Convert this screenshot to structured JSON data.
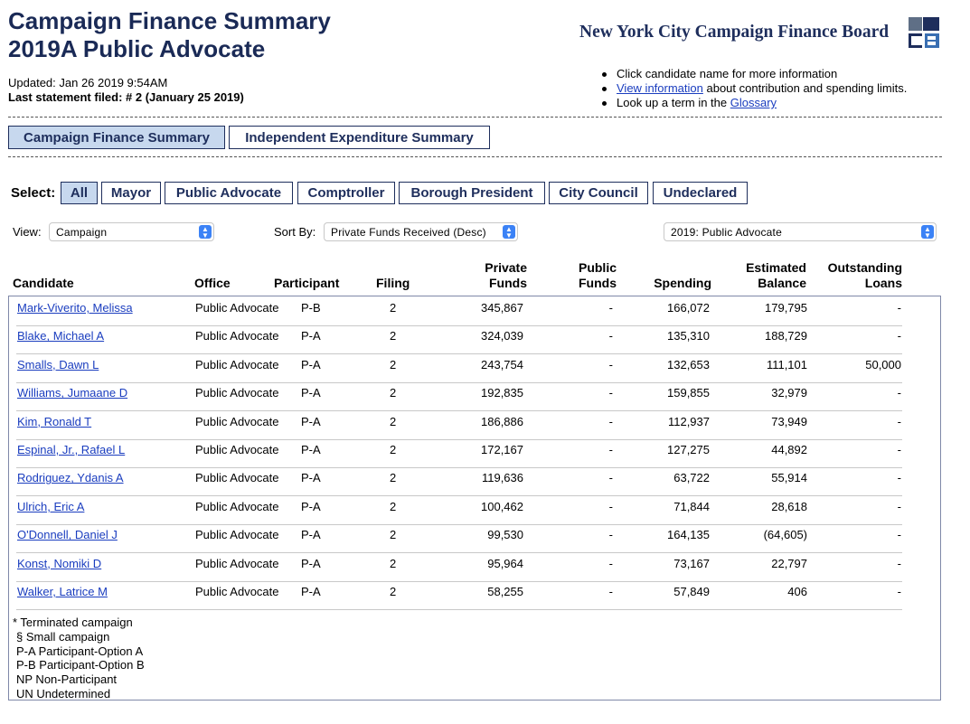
{
  "header": {
    "title_line1": "Campaign Finance Summary",
    "title_line2": "2019A Public Advocate",
    "updated": "Updated: Jan 26 2019 9:54AM",
    "last_statement": "Last statement filed: # 2 (January 25 2019)",
    "brand": "New York City Campaign Finance Board"
  },
  "info": {
    "item1": "Click candidate name for more information",
    "item2_link": "View information",
    "item2_rest": " about contribution and spending limits.",
    "item3_text": "Look up a term in the ",
    "item3_link": "Glossary"
  },
  "tabs": {
    "campaign": "Campaign Finance Summary",
    "independent": "Independent Expenditure Summary"
  },
  "select": {
    "label": "Select:",
    "all": "All",
    "mayor": "Mayor",
    "public_advocate": "Public Advocate",
    "comptroller": "Comptroller",
    "borough_president": "Borough President",
    "city_council": "City Council",
    "undeclared": "Undeclared"
  },
  "controls": {
    "view_label": "View:",
    "view_value": "Campaign",
    "sort_label": "Sort By:",
    "sort_value": "Private Funds Received (Desc)",
    "election_value": "2019: Public Advocate"
  },
  "table": {
    "headers": {
      "candidate": "Candidate",
      "office": "Office",
      "participant": "Participant",
      "filing": "Filing",
      "private_1": "Private",
      "private_2": "Funds",
      "public_1": "Public",
      "public_2": "Funds",
      "spending": "Spending",
      "balance_1": "Estimated",
      "balance_2": "Balance",
      "loans_1": "Outstanding",
      "loans_2": "Loans"
    },
    "rows": [
      {
        "candidate": "Mark-Viverito, Melissa",
        "office": "Public Advocate",
        "participant": "P-B",
        "filing": "2",
        "private": "345,867",
        "public": "-",
        "spending": "166,072",
        "balance": "179,795",
        "loans": "-"
      },
      {
        "candidate": "Blake, Michael A",
        "office": "Public Advocate",
        "participant": "P-A",
        "filing": "2",
        "private": "324,039",
        "public": "-",
        "spending": "135,310",
        "balance": "188,729",
        "loans": "-"
      },
      {
        "candidate": "Smalls, Dawn L",
        "office": "Public Advocate",
        "participant": "P-A",
        "filing": "2",
        "private": "243,754",
        "public": "-",
        "spending": "132,653",
        "balance": "111,101",
        "loans": "50,000"
      },
      {
        "candidate": "Williams, Jumaane D",
        "office": "Public Advocate",
        "participant": "P-A",
        "filing": "2",
        "private": "192,835",
        "public": "-",
        "spending": "159,855",
        "balance": "32,979",
        "loans": "-"
      },
      {
        "candidate": "Kim, Ronald T",
        "office": "Public Advocate",
        "participant": "P-A",
        "filing": "2",
        "private": "186,886",
        "public": "-",
        "spending": "112,937",
        "balance": "73,949",
        "loans": "-"
      },
      {
        "candidate": "Espinal, Jr., Rafael L",
        "office": "Public Advocate",
        "participant": "P-A",
        "filing": "2",
        "private": "172,167",
        "public": "-",
        "spending": "127,275",
        "balance": "44,892",
        "loans": "-"
      },
      {
        "candidate": "Rodriguez, Ydanis A",
        "office": "Public Advocate",
        "participant": "P-A",
        "filing": "2",
        "private": "119,636",
        "public": "-",
        "spending": "63,722",
        "balance": "55,914",
        "loans": "-"
      },
      {
        "candidate": "Ulrich, Eric A",
        "office": "Public Advocate",
        "participant": "P-A",
        "filing": "2",
        "private": "100,462",
        "public": "-",
        "spending": "71,844",
        "balance": "28,618",
        "loans": "-"
      },
      {
        "candidate": "O'Donnell, Daniel J",
        "office": "Public Advocate",
        "participant": "P-A",
        "filing": "2",
        "private": "99,530",
        "public": "-",
        "spending": "164,135",
        "balance": "(64,605)",
        "loans": "-"
      },
      {
        "candidate": "Konst, Nomiki D",
        "office": "Public Advocate",
        "participant": "P-A",
        "filing": "2",
        "private": "95,964",
        "public": "-",
        "spending": "73,167",
        "balance": "22,797",
        "loans": "-"
      },
      {
        "candidate": "Walker, Latrice M",
        "office": "Public Advocate",
        "participant": "P-A",
        "filing": "2",
        "private": "58,255",
        "public": "-",
        "spending": "57,849",
        "balance": "406",
        "loans": "-"
      }
    ]
  },
  "legend": {
    "terminated": "* Terminated campaign",
    "small": "§ Small campaign",
    "pa": "P-A Participant-Option A",
    "pb": "P-B Participant-Option B",
    "np": "NP Non-Participant",
    "un": "UN Undetermined"
  },
  "colors": {
    "title": "#1a2a56",
    "active_button": "#c7d8ee",
    "link": "#1a3dbf",
    "dropdown_arrow": "#3b82f6"
  }
}
